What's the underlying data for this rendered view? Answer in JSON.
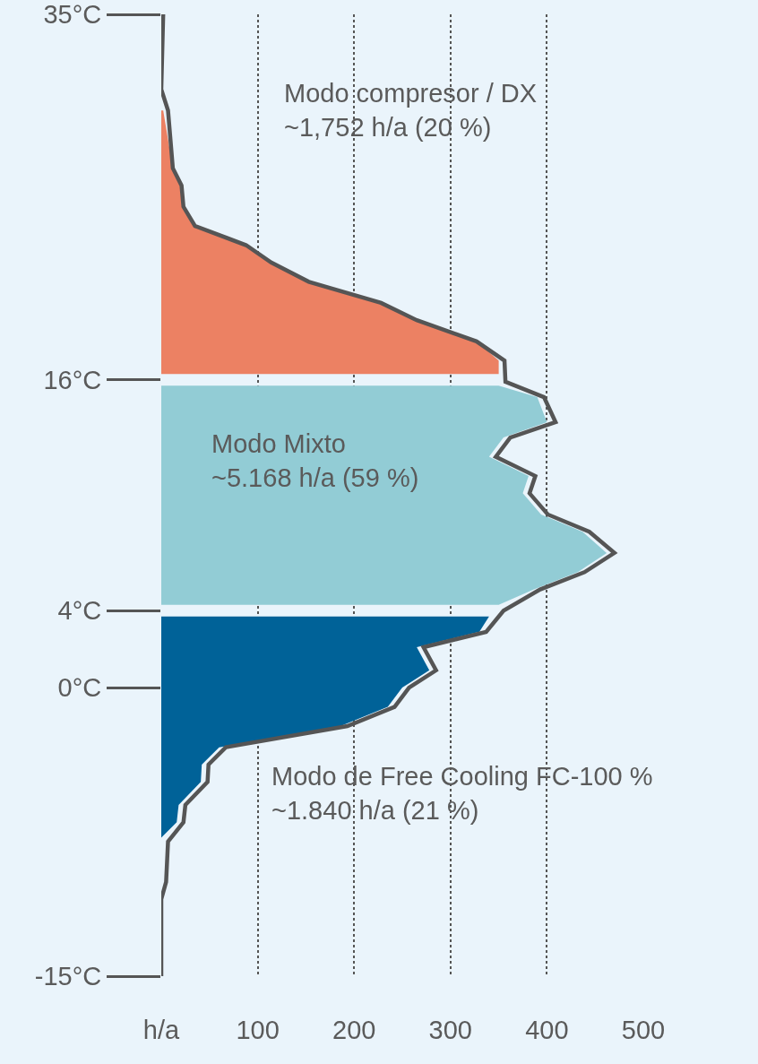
{
  "chart_data": {
    "type": "area",
    "orientation": "horizontal",
    "xlim": [
      0,
      500
    ],
    "xticks": [
      {
        "value": 0,
        "label": "h/a"
      },
      100,
      200,
      300,
      400,
      500
    ],
    "ylim": [
      -15,
      35
    ],
    "yticks": [
      {
        "value": 35,
        "label": "35°C"
      },
      {
        "value": 16,
        "label": "16°C"
      },
      {
        "value": 4,
        "label": "4°C"
      },
      {
        "value": 0,
        "label": "0°C"
      },
      {
        "value": -15,
        "label": "-15°C"
      }
    ],
    "grid": "x",
    "series": [
      {
        "color": "#ec8163",
        "x": [
          30.0,
          27.0,
          26.1,
          25.0,
          24.0,
          23.0,
          22.1,
          21.1,
          20.0,
          19.1,
          18.0,
          17.0,
          16.3
        ],
        "values": [
          2,
          12,
          21,
          23,
          35,
          88,
          114,
          153,
          228,
          265,
          327,
          350,
          350
        ]
      },
      {
        "color": "#92ccd5",
        "x": [
          15.7,
          15.1,
          13.8,
          13.0,
          12.0,
          11.0,
          10.1,
          9.0,
          8.1,
          7.0,
          6.0,
          5.1,
          4.3
        ],
        "values": [
          350,
          390,
          400,
          355,
          340,
          381,
          375,
          394,
          437,
          462,
          432,
          386,
          350
        ]
      },
      {
        "color": "#006298",
        "x": [
          3.7,
          2.9,
          2.1,
          0.9,
          0.0,
          -1.0,
          -2.0,
          -3.1,
          -4.0,
          -4.9,
          -6.1,
          -7.0,
          -7.8
        ],
        "values": [
          340,
          330,
          265,
          278,
          250,
          235,
          186,
          60,
          42,
          41,
          18,
          16,
          0
        ]
      },
      {
        "type": "line",
        "color": "#555555",
        "x": [
          35.0,
          31.1,
          30.0,
          27.0,
          26.1,
          25.0,
          24.0,
          23.0,
          22.1,
          21.1,
          20.0,
          19.1,
          18.0,
          17.0,
          15.9,
          15.1,
          13.8,
          13.0,
          12.0,
          11.0,
          10.1,
          9.0,
          8.1,
          7.0,
          6.0,
          5.1,
          4.0,
          2.9,
          2.1,
          0.9,
          0.0,
          -1.0,
          -2.0,
          -3.1,
          -4.0,
          -4.9,
          -6.1,
          -7.0,
          -8.0,
          -10.1,
          -11.0,
          -15.0
        ],
        "values": [
          2,
          0,
          7,
          12,
          21,
          23,
          35,
          88,
          114,
          153,
          228,
          265,
          327,
          356,
          357,
          397,
          409,
          362,
          347,
          388,
          382,
          401,
          444,
          470,
          439,
          393,
          355,
          337,
          272,
          285,
          257,
          242,
          193,
          67,
          49,
          48,
          25,
          23,
          7,
          5,
          0,
          0
        ]
      }
    ],
    "annotations": [
      "Modo compresor / DX\n~1,752 h/a (20 %)",
      "Modo Mixto\n~5.168 h/a (59 %)",
      "Modo de Free Cooling FC-100 %\n~1.840 h/a (21 %)"
    ]
  }
}
